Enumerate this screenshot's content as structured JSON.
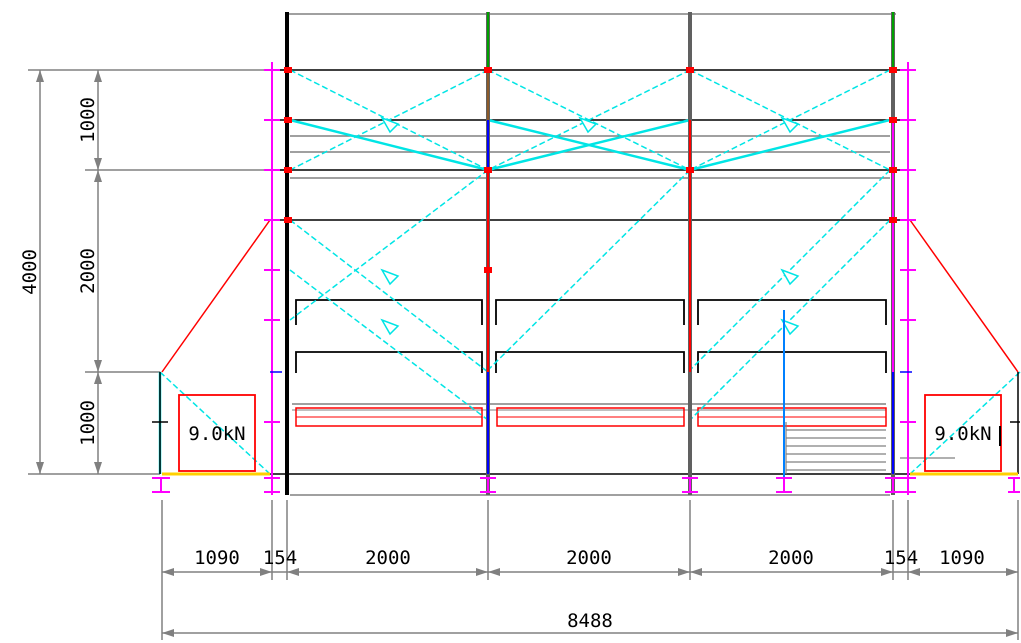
{
  "drawing": {
    "colors": {
      "dimension": "#808080",
      "frame": "#000000",
      "brace": "#00e5e5",
      "tie": "#ff0000",
      "stem": "#ff00ff",
      "ledger_blue": "#0000ff",
      "base_plate": "#ffff00"
    },
    "vertical_dims": {
      "total": "4000",
      "top": "1000",
      "middle": "2000",
      "bottom": "1000"
    },
    "horizontal_dims": {
      "left_outrigger": "1090",
      "left_gap": "154",
      "bay_1": "2000",
      "bay_2": "2000",
      "bay_3": "2000",
      "right_gap": "154",
      "right_outrigger": "1090",
      "overall": "8488"
    },
    "loads": {
      "left": "9.0kN",
      "right": "9.0kN"
    }
  }
}
